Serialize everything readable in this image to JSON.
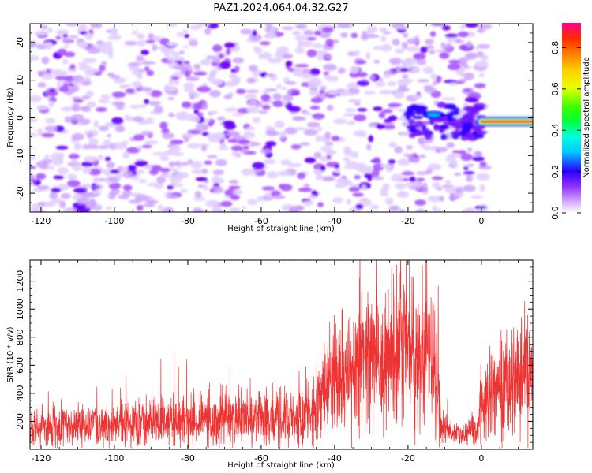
{
  "title": "PAZ1.2024.064.04.32.G27",
  "chart_data": [
    {
      "type": "heatmap",
      "xlabel": "Height of straight line (km)",
      "ylabel": "Frequency (Hz)",
      "xlim": [
        -123,
        14
      ],
      "ylim": [
        -25,
        25
      ],
      "xticks": [
        -120,
        -100,
        -80,
        -60,
        -40,
        -20,
        0
      ],
      "yticks": [
        -20,
        -10,
        0,
        10,
        20
      ],
      "colorbar": {
        "label": "Normalized spectral amplitude",
        "range": [
          0,
          0.92
        ],
        "ticks": [
          0.0,
          0.2,
          0.4,
          0.6,
          0.8
        ]
      },
      "features": [
        {
          "x_range": [
            -123,
            0
          ],
          "frequency": "broadband",
          "amplitude": 0.1
        },
        {
          "x_range": [
            -20,
            0
          ],
          "frequency": -1,
          "amplitude": 0.3
        },
        {
          "x_range": [
            0,
            14
          ],
          "frequency": -1,
          "amplitude": 0.92
        }
      ]
    },
    {
      "type": "line",
      "xlabel": "Height of straight line (km)",
      "ylabel": "SNR (10 * v/v)",
      "xlim": [
        -123,
        14
      ],
      "ylim": [
        0,
        1350
      ],
      "xticks": [
        -120,
        -100,
        -80,
        -60,
        -40,
        -20,
        0
      ],
      "yticks": [
        200,
        400,
        600,
        800,
        1000,
        1200
      ],
      "color": "#ee3333",
      "envelope": {
        "x": [
          -123,
          -113,
          -100,
          -85,
          -70,
          -50,
          -45,
          -42,
          -38,
          -34,
          -31,
          -29,
          -27,
          -24,
          -21,
          -19,
          -17,
          -14,
          -12,
          -11,
          -8,
          -4,
          -1,
          0,
          3,
          8,
          14
        ],
        "y": [
          150,
          160,
          170,
          200,
          220,
          230,
          330,
          430,
          500,
          560,
          700,
          680,
          550,
          620,
          750,
          680,
          580,
          720,
          500,
          160,
          120,
          110,
          150,
          330,
          430,
          500,
          560
        ]
      }
    }
  ]
}
